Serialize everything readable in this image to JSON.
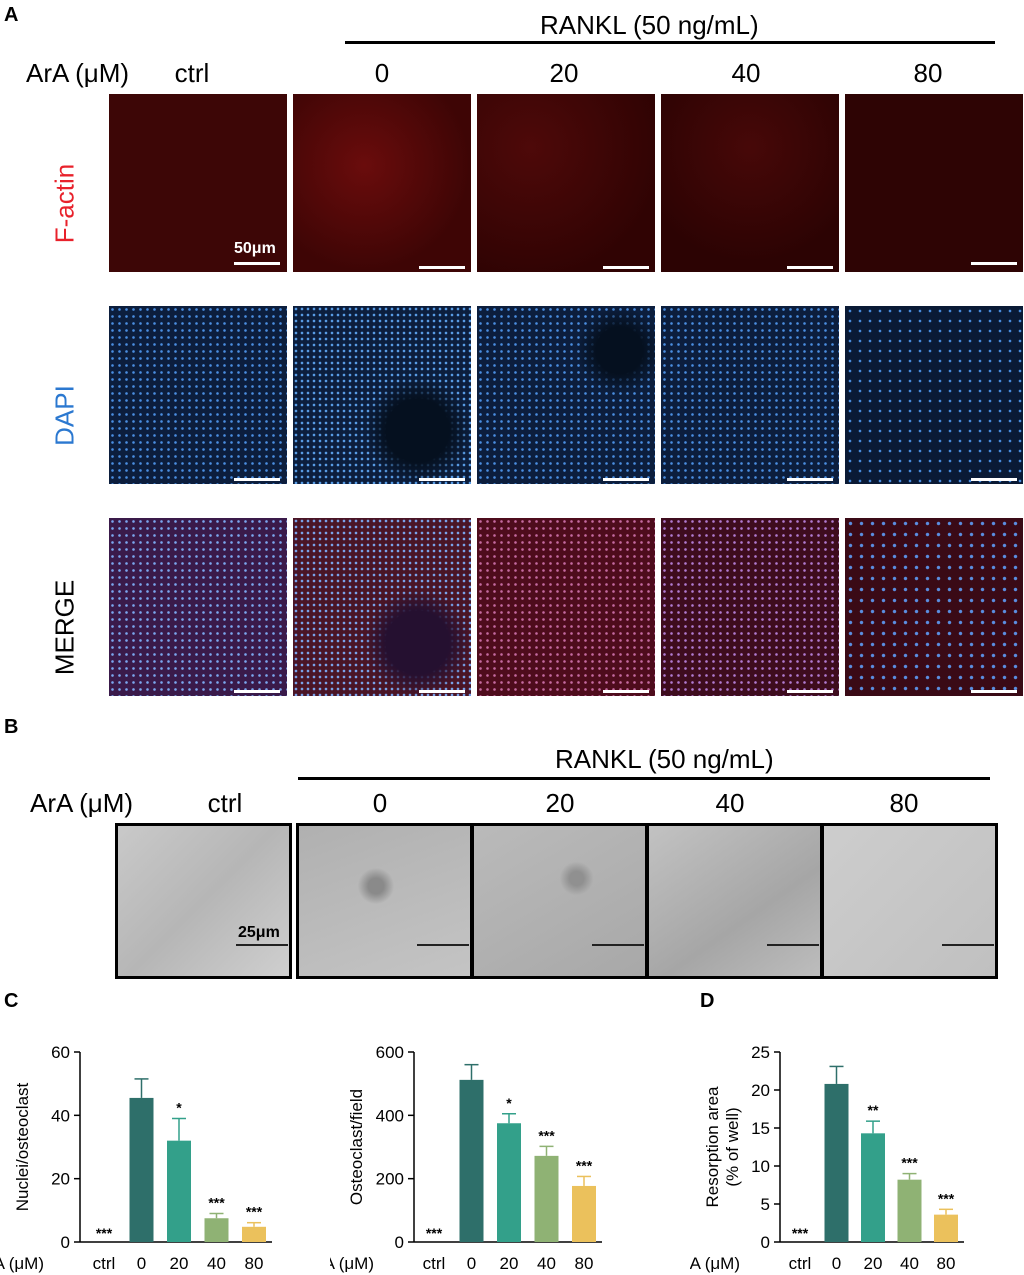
{
  "panelA": {
    "letter": "A",
    "treatment": "RANKL (50 ng/mL)",
    "dose_label": "ArA (μM)",
    "columns": [
      "ctrl",
      "0",
      "20",
      "40",
      "80"
    ],
    "rows": [
      {
        "label": "F-actin",
        "color": "#e8212b"
      },
      {
        "label": "DAPI",
        "color": "#2b78d0"
      },
      {
        "label": "MERGE",
        "color": "#000000"
      }
    ],
    "scale_label": "50μm"
  },
  "panelB": {
    "letter": "B",
    "treatment": "RANKL (50 ng/mL)",
    "dose_label": "ArA (μM)",
    "columns": [
      "ctrl",
      "0",
      "20",
      "40",
      "80"
    ],
    "scale_label": "25μm"
  },
  "panelC": {
    "letter": "C"
  },
  "panelD": {
    "letter": "D"
  },
  "chart_data": [
    {
      "type": "bar",
      "panel": "C",
      "ylabel": "Nuclei/osteoclast",
      "x_axis_caption": "ArA (μM)",
      "categories": [
        "ctrl",
        "0",
        "20",
        "40",
        "80"
      ],
      "values": [
        0,
        45.5,
        32,
        7.5,
        4.8
      ],
      "errors": [
        0,
        6,
        7,
        1.5,
        1.3
      ],
      "significance": [
        "***",
        "",
        "*",
        "***",
        "***"
      ],
      "yticks": [
        0,
        20,
        40,
        60
      ],
      "ylim": [
        0,
        60
      ],
      "colors": [
        "#2e6f6a",
        "#2e6f6a",
        "#33a08a",
        "#8fb274",
        "#ebc15c"
      ]
    },
    {
      "type": "bar",
      "panel": "C",
      "ylabel": "Osteoclast/field",
      "x_axis_caption": "ArA (μM)",
      "categories": [
        "ctrl",
        "0",
        "20",
        "40",
        "80"
      ],
      "values": [
        0,
        512,
        375,
        272,
        177
      ],
      "errors": [
        0,
        48,
        30,
        30,
        30
      ],
      "significance": [
        "***",
        "",
        "*",
        "***",
        "***"
      ],
      "yticks": [
        0,
        200,
        400,
        600
      ],
      "ylim": [
        0,
        600
      ],
      "colors": [
        "#2e6f6a",
        "#2e6f6a",
        "#33a08a",
        "#8fb274",
        "#ebc15c"
      ]
    },
    {
      "type": "bar",
      "panel": "D",
      "ylabel_lines": [
        "Resorption area",
        "(% of well)"
      ],
      "x_axis_caption": "ArA (μM)",
      "categories": [
        "ctrl",
        "0",
        "20",
        "40",
        "80"
      ],
      "values": [
        0,
        20.8,
        14.3,
        8.2,
        3.6
      ],
      "errors": [
        0,
        2.3,
        1.6,
        0.8,
        0.7
      ],
      "significance": [
        "***",
        "",
        "**",
        "***",
        "***"
      ],
      "yticks": [
        0,
        5,
        10,
        15,
        20,
        25
      ],
      "ylim": [
        0,
        25
      ],
      "colors": [
        "#2e6f6a",
        "#2e6f6a",
        "#33a08a",
        "#8fb274",
        "#ebc15c"
      ]
    }
  ]
}
